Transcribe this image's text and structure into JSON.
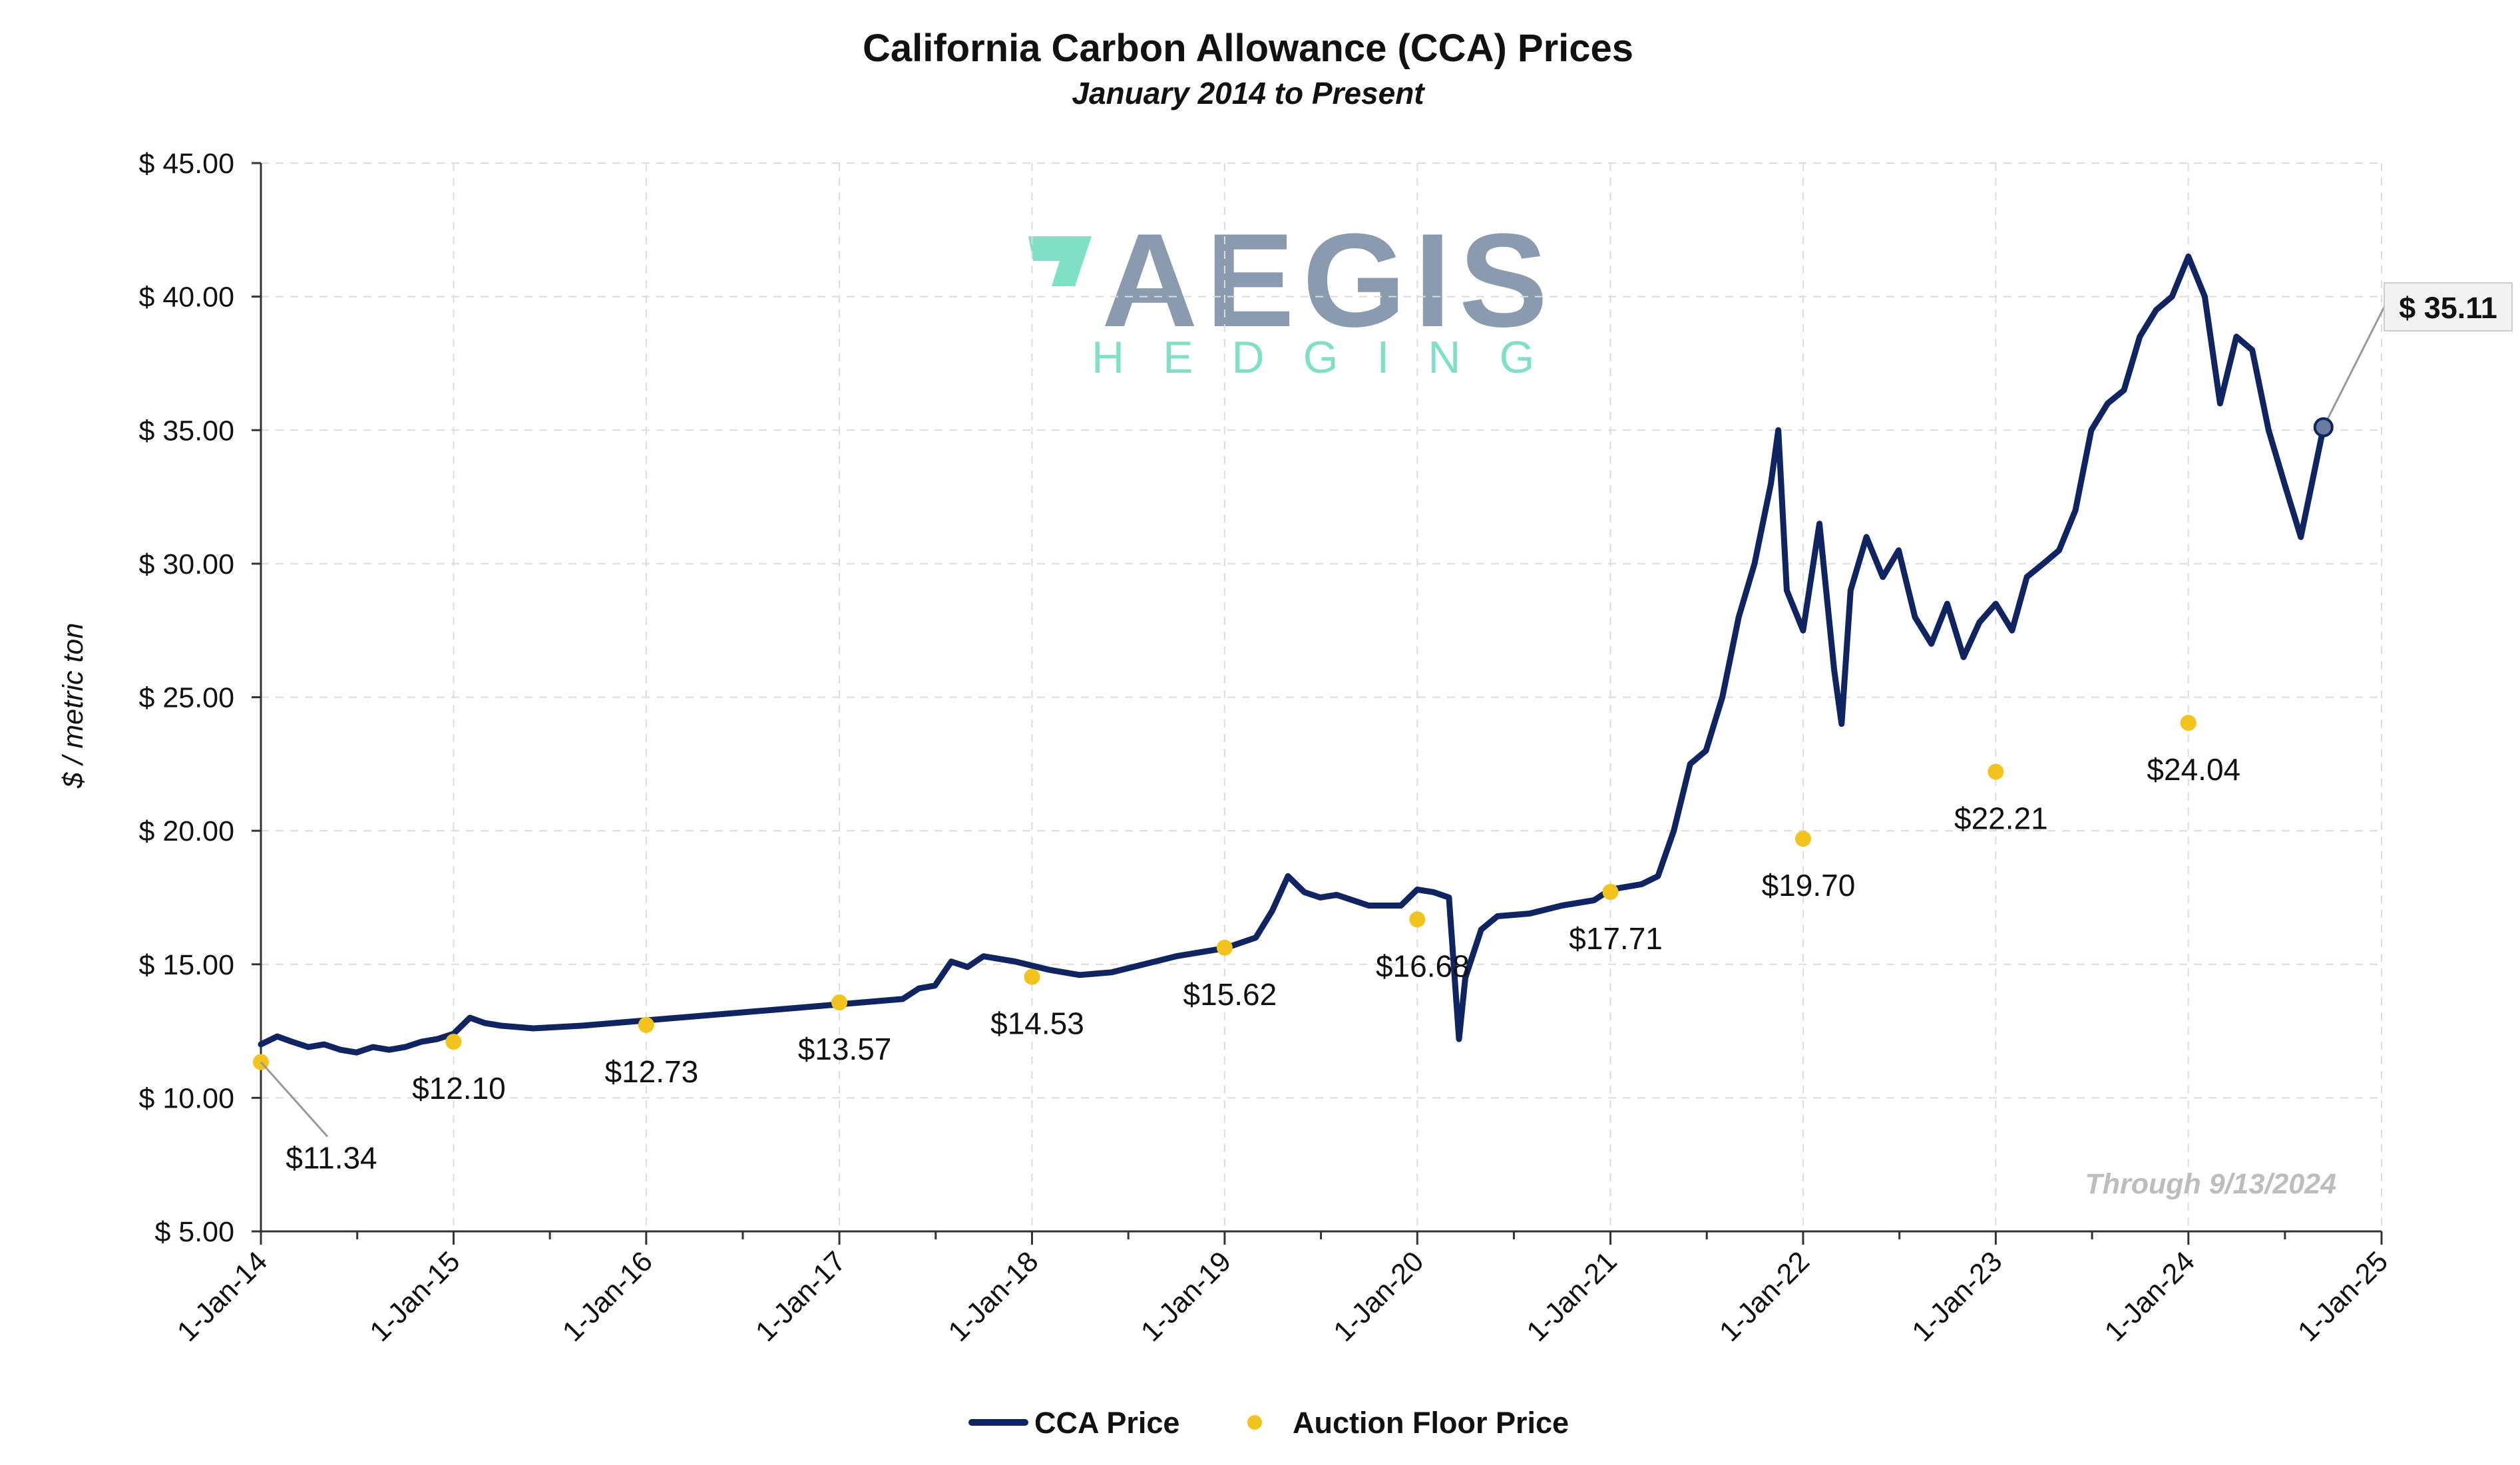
{
  "logo": {
    "main_text": "AEGIS",
    "sub_text": "HEDGING",
    "mark_color": "#7fe0c5",
    "main_color": "#8a9bb0"
  },
  "chart_data": {
    "type": "line",
    "title": "California Carbon Allowance (CCA) Prices",
    "subtitle": "January 2014 to Present",
    "ylabel": "$ / metric ton",
    "xlabel": "",
    "ylim": [
      5,
      45
    ],
    "xlim": [
      "2014-01-01",
      "2025-01-01"
    ],
    "y_ticks": [
      5,
      10,
      15,
      20,
      25,
      30,
      35,
      40,
      45
    ],
    "y_tick_labels": [
      "$ 5.00",
      "$ 10.00",
      "$ 15.00",
      "$ 20.00",
      "$ 25.00",
      "$ 30.00",
      "$ 35.00",
      "$ 40.00",
      "$ 45.00"
    ],
    "x_ticks": [
      "2014-01-01",
      "2015-01-01",
      "2016-01-01",
      "2017-01-01",
      "2018-01-01",
      "2019-01-01",
      "2020-01-01",
      "2021-01-01",
      "2022-01-01",
      "2023-01-01",
      "2024-01-01",
      "2025-01-01"
    ],
    "x_tick_labels": [
      "1-Jan-14",
      "1-Jan-15",
      "1-Jan-16",
      "1-Jan-17",
      "1-Jan-18",
      "1-Jan-19",
      "1-Jan-20",
      "1-Jan-21",
      "1-Jan-22",
      "1-Jan-23",
      "1-Jan-24",
      "1-Jan-25"
    ],
    "grid": true,
    "legend_position": "bottom",
    "through_note": "Through 9/13/2024",
    "last_value_label": "$ 35.11",
    "series": [
      {
        "name": "CCA Price",
        "color": "#0f2461",
        "points": [
          [
            "2014-01-01",
            12.0
          ],
          [
            "2014-02-01",
            12.3
          ],
          [
            "2014-03-01",
            12.1
          ],
          [
            "2014-04-01",
            11.9
          ],
          [
            "2014-05-01",
            12.0
          ],
          [
            "2014-06-01",
            11.8
          ],
          [
            "2014-07-01",
            11.7
          ],
          [
            "2014-08-01",
            11.9
          ],
          [
            "2014-09-01",
            11.8
          ],
          [
            "2014-10-01",
            11.9
          ],
          [
            "2014-11-01",
            12.1
          ],
          [
            "2014-12-01",
            12.2
          ],
          [
            "2015-01-01",
            12.4
          ],
          [
            "2015-02-01",
            13.0
          ],
          [
            "2015-03-01",
            12.8
          ],
          [
            "2015-04-01",
            12.7
          ],
          [
            "2015-06-01",
            12.6
          ],
          [
            "2015-09-01",
            12.7
          ],
          [
            "2016-01-01",
            12.9
          ],
          [
            "2017-01-01",
            13.5
          ],
          [
            "2017-05-01",
            13.7
          ],
          [
            "2017-06-01",
            14.1
          ],
          [
            "2017-07-01",
            14.2
          ],
          [
            "2017-08-01",
            15.1
          ],
          [
            "2017-09-01",
            14.9
          ],
          [
            "2017-10-01",
            15.3
          ],
          [
            "2017-12-01",
            15.1
          ],
          [
            "2018-02-01",
            14.8
          ],
          [
            "2018-04-01",
            14.6
          ],
          [
            "2018-06-01",
            14.7
          ],
          [
            "2018-08-01",
            15.0
          ],
          [
            "2018-10-01",
            15.3
          ],
          [
            "2018-12-01",
            15.5
          ],
          [
            "2019-01-01",
            15.6
          ],
          [
            "2019-03-01",
            16.0
          ],
          [
            "2019-04-01",
            17.0
          ],
          [
            "2019-05-01",
            18.3
          ],
          [
            "2019-06-01",
            17.7
          ],
          [
            "2019-07-01",
            17.5
          ],
          [
            "2019-08-01",
            17.6
          ],
          [
            "2019-10-01",
            17.2
          ],
          [
            "2019-12-01",
            17.2
          ],
          [
            "2020-01-01",
            17.8
          ],
          [
            "2020-02-01",
            17.7
          ],
          [
            "2020-03-01",
            17.5
          ],
          [
            "2020-03-20",
            12.2
          ],
          [
            "2020-04-01",
            14.5
          ],
          [
            "2020-05-01",
            16.3
          ],
          [
            "2020-06-01",
            16.8
          ],
          [
            "2020-08-01",
            16.9
          ],
          [
            "2020-10-01",
            17.2
          ],
          [
            "2020-12-01",
            17.4
          ],
          [
            "2021-01-01",
            17.8
          ],
          [
            "2021-03-01",
            18.0
          ],
          [
            "2021-04-01",
            18.3
          ],
          [
            "2021-05-01",
            20.0
          ],
          [
            "2021-06-01",
            22.5
          ],
          [
            "2021-07-01",
            23.0
          ],
          [
            "2021-08-01",
            25.0
          ],
          [
            "2021-09-01",
            28.0
          ],
          [
            "2021-10-01",
            30.0
          ],
          [
            "2021-11-01",
            33.0
          ],
          [
            "2021-11-15",
            35.0
          ],
          [
            "2021-12-01",
            29.0
          ],
          [
            "2022-01-01",
            27.5
          ],
          [
            "2022-02-01",
            31.5
          ],
          [
            "2022-03-01",
            26.0
          ],
          [
            "2022-03-15",
            24.0
          ],
          [
            "2022-04-01",
            29.0
          ],
          [
            "2022-05-01",
            31.0
          ],
          [
            "2022-06-01",
            29.5
          ],
          [
            "2022-07-01",
            30.5
          ],
          [
            "2022-08-01",
            28.0
          ],
          [
            "2022-09-01",
            27.0
          ],
          [
            "2022-10-01",
            28.5
          ],
          [
            "2022-11-01",
            26.5
          ],
          [
            "2022-12-01",
            27.8
          ],
          [
            "2023-01-01",
            28.5
          ],
          [
            "2023-02-01",
            27.5
          ],
          [
            "2023-03-01",
            29.5
          ],
          [
            "2023-04-01",
            30.0
          ],
          [
            "2023-05-01",
            30.5
          ],
          [
            "2023-06-01",
            32.0
          ],
          [
            "2023-07-01",
            35.0
          ],
          [
            "2023-08-01",
            36.0
          ],
          [
            "2023-09-01",
            36.5
          ],
          [
            "2023-10-01",
            38.5
          ],
          [
            "2023-11-01",
            39.5
          ],
          [
            "2023-12-01",
            40.0
          ],
          [
            "2024-01-01",
            41.5
          ],
          [
            "2024-02-01",
            40.0
          ],
          [
            "2024-03-01",
            36.0
          ],
          [
            "2024-04-01",
            38.5
          ],
          [
            "2024-05-01",
            38.0
          ],
          [
            "2024-06-01",
            35.0
          ],
          [
            "2024-07-01",
            33.0
          ],
          [
            "2024-08-01",
            31.0
          ],
          [
            "2024-09-13",
            35.11
          ]
        ]
      },
      {
        "name": "Auction Floor Price",
        "color": "#f2c31d",
        "points": [
          [
            "2014-01-01",
            11.34,
            "$11.34"
          ],
          [
            "2015-01-01",
            12.1,
            "$12.10"
          ],
          [
            "2016-01-01",
            12.73,
            "$12.73"
          ],
          [
            "2017-01-01",
            13.57,
            "$13.57"
          ],
          [
            "2018-01-01",
            14.53,
            "$14.53"
          ],
          [
            "2019-01-01",
            15.62,
            "$15.62"
          ],
          [
            "2020-01-01",
            16.68,
            "$16.68"
          ],
          [
            "2021-01-01",
            17.71,
            "$17.71"
          ],
          [
            "2022-01-01",
            19.7,
            "$19.70"
          ],
          [
            "2023-01-01",
            22.21,
            "$22.21"
          ],
          [
            "2024-01-01",
            24.04,
            "$24.04"
          ]
        ]
      }
    ]
  }
}
